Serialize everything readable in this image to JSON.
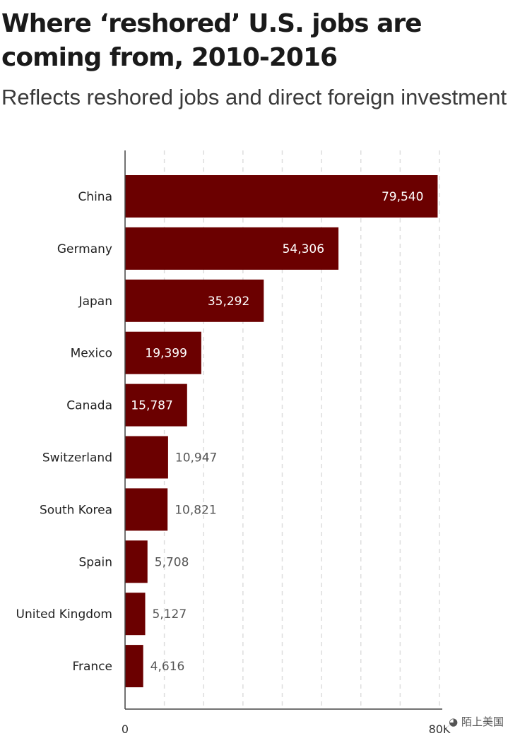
{
  "header": {
    "title": "Where ‘reshored’ U.S. jobs are coming from, 2010-2016",
    "subtitle": "Reflects reshored jobs and direct foreign investment"
  },
  "watermark": {
    "text": "陌上美国",
    "icon": "wechat-icon"
  },
  "colors": {
    "bar": "#6b0000",
    "label_inside": "#ffffff",
    "label_outside": "#555555",
    "grid": "#dddddd",
    "axis": "#444444"
  },
  "chart_data": {
    "type": "bar",
    "orientation": "horizontal",
    "title": "Where ‘reshored’ U.S. jobs are coming from, 2010-2016",
    "subtitle": "Reflects reshored jobs and direct foreign investment",
    "categories": [
      "China",
      "Germany",
      "Japan",
      "Mexico",
      "Canada",
      "Switzerland",
      "South Korea",
      "Spain",
      "United Kingdom",
      "France"
    ],
    "values": [
      79540,
      54306,
      35292,
      19399,
      15787,
      10947,
      10821,
      5708,
      5127,
      4616
    ],
    "value_labels": [
      "79,540",
      "54,306",
      "35,292",
      "19,399",
      "15,787",
      "10,947",
      "10,821",
      "5,708",
      "5,127",
      "4,616"
    ],
    "xlim": [
      0,
      80000
    ],
    "x_ticks": [
      0,
      80000
    ],
    "x_tick_labels": [
      "0",
      "80K"
    ],
    "gridlines": [
      10000,
      20000,
      30000,
      40000,
      50000,
      60000,
      70000,
      80000
    ],
    "grid": true,
    "xlabel": "",
    "ylabel": ""
  }
}
